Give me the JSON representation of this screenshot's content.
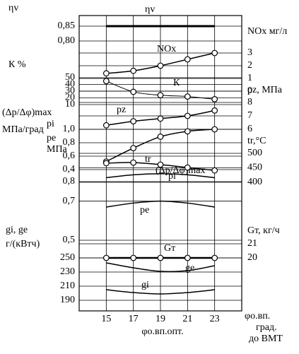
{
  "chart_data": {
    "type": "line",
    "x": [
      15,
      17,
      19,
      21,
      23
    ],
    "xlim": [
      13,
      25
    ],
    "xticks": [
      15,
      17,
      19,
      21,
      23
    ],
    "xlabel": "φо.вп.",
    "xlabel_unit": [
      "град.",
      "до ВМТ"
    ],
    "annotation": "φо.вп.опт.",
    "color": "#000000",
    "grid": true,
    "axes": [
      {
        "side": "left",
        "label": [
          "ηv"
        ],
        "lim": [
          0.8,
          0.85
        ],
        "ticks": [
          {
            "value": 0.85,
            "label": "0,85"
          },
          {
            "value": 0.8,
            "label": "0,80"
          }
        ]
      },
      {
        "side": "left",
        "label": [
          "К %"
        ],
        "lim": [
          10,
          50
        ],
        "ticks": [
          50,
          40,
          30,
          20,
          10
        ]
      },
      {
        "side": "right",
        "label": [
          "NOx мг/л"
        ],
        "lim": [
          0,
          3
        ],
        "ticks": [
          3,
          2,
          1,
          0
        ]
      },
      {
        "side": "right",
        "label": [
          "pz, МПа"
        ],
        "lim": [
          6,
          8
        ],
        "ticks": [
          8,
          7,
          6
        ]
      },
      {
        "side": "left",
        "label": [
          "(Δp/Δφ)max",
          "МПа/град"
        ],
        "lim": [
          0.4,
          1.0
        ],
        "ticks": [
          {
            "value": 1.0,
            "label": "1,0"
          },
          {
            "value": 0.8,
            "label": "0,8"
          },
          {
            "value": 0.6,
            "label": "0,6"
          },
          {
            "value": 0.4,
            "label": "0,4"
          }
        ]
      },
      {
        "side": "left",
        "label": [
          "pi",
          "pe",
          "МПа"
        ],
        "lim": [
          0.5,
          0.8
        ],
        "ticks": [
          {
            "value": 0.8,
            "label": "0,8"
          },
          {
            "value": 0.7,
            "label": "0,7"
          },
          {
            "value": 0.5,
            "label": "0,5"
          }
        ]
      },
      {
        "side": "right",
        "label": [
          "tr,°C"
        ],
        "lim": [
          400,
          500
        ],
        "ticks": [
          500,
          450,
          400
        ]
      },
      {
        "side": "right",
        "label": [
          "Gт, кг/ч"
        ],
        "lim": [
          20,
          21
        ],
        "ticks": [
          21,
          20
        ]
      },
      {
        "side": "left",
        "label": [
          "gi, ge",
          "г/(кВтч)"
        ],
        "lim": [
          190,
          250
        ],
        "ticks": [
          250,
          230,
          210,
          190
        ]
      }
    ],
    "series": [
      {
        "name": "ηv",
        "axis": 0,
        "values": [
          0.85,
          0.85,
          0.85,
          0.85,
          0.85
        ],
        "marker": false,
        "width": 3
      },
      {
        "name": "К",
        "axis": 1,
        "values": [
          45,
          29,
          24,
          22,
          18
        ],
        "marker": true,
        "width": 1
      },
      {
        "name": "NOx",
        "axis": 2,
        "values": [
          1.4,
          1.6,
          2.0,
          2.5,
          3.0
        ],
        "marker": true,
        "width": 1.5
      },
      {
        "name": "pz",
        "axis": 3,
        "values": [
          6.3,
          6.6,
          6.8,
          7.0,
          7.4
        ],
        "marker": true,
        "width": 1.5
      },
      {
        "name": "(Δp/Δφ)max",
        "axis": 4,
        "values": [
          0.52,
          0.72,
          0.89,
          0.97,
          1.0
        ],
        "marker": true,
        "width": 1.5
      },
      {
        "name": "pi",
        "axis": 5,
        "values": [
          0.82,
          0.835,
          0.84,
          0.835,
          0.82
        ],
        "marker": false,
        "width": 1.5
      },
      {
        "name": "pe",
        "axis": 5,
        "values": [
          0.67,
          0.69,
          0.7,
          0.69,
          0.67
        ],
        "marker": false,
        "width": 1.5
      },
      {
        "name": "tr",
        "axis": 6,
        "values": [
          466,
          468,
          461,
          451,
          441
        ],
        "marker": true,
        "width": 1.5
      },
      {
        "name": "Gт",
        "axis": 7,
        "values": [
          20,
          20,
          20,
          20,
          20
        ],
        "marker": true,
        "width": 2.5
      },
      {
        "name": "ge",
        "axis": 8,
        "values": [
          243,
          236,
          231,
          232,
          239
        ],
        "marker": false,
        "width": 1.5
      },
      {
        "name": "gi",
        "axis": 8,
        "values": [
          205,
          201,
          199,
          201,
          205
        ],
        "marker": false,
        "width": 1.5
      }
    ]
  }
}
